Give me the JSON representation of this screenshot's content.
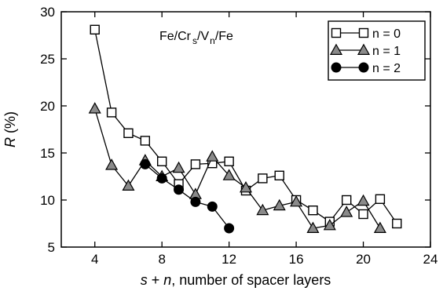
{
  "chart_data": {
    "type": "line",
    "annotation": {
      "parts": [
        {
          "text": "Fe/Cr",
          "style": "normal"
        },
        {
          "text": "s",
          "style": "sub"
        },
        {
          "text": "/V",
          "style": "normal"
        },
        {
          "text": "n",
          "style": "sub"
        },
        {
          "text": "/Fe",
          "style": "normal"
        }
      ]
    },
    "xlabel": {
      "italic1": "s",
      "plain1": " + ",
      "italic2": "n",
      "plain2": ", number of spacer layers"
    },
    "ylabel": {
      "italic": "R",
      "plain": " (%)"
    },
    "xlim": [
      2,
      24
    ],
    "ylim": [
      5,
      30
    ],
    "xticks": [
      4,
      8,
      12,
      16,
      20,
      24
    ],
    "yticks": [
      5,
      10,
      15,
      20,
      25,
      30
    ],
    "grid": false,
    "legend_position": "top-right",
    "series": [
      {
        "name": "n = 0",
        "marker": "square-open",
        "x": [
          4,
          5,
          6,
          7,
          8,
          9,
          10,
          11,
          12,
          13,
          14,
          15,
          16,
          17,
          18,
          19,
          20,
          21,
          22
        ],
        "y": [
          28.1,
          19.3,
          17.1,
          16.3,
          14.1,
          11.7,
          13.8,
          13.9,
          14.1,
          11.0,
          12.3,
          12.6,
          10.0,
          8.9,
          7.7,
          10.0,
          8.5,
          10.1,
          7.5
        ]
      },
      {
        "name": "n = 1",
        "marker": "triangle-gray",
        "x": [
          4,
          5,
          6,
          7,
          8,
          9,
          10,
          11,
          12,
          13,
          14,
          15,
          16,
          17,
          18,
          19,
          20,
          21
        ],
        "y": [
          19.7,
          13.7,
          11.5,
          14.2,
          12.5,
          13.4,
          10.6,
          14.6,
          12.6,
          11.3,
          8.9,
          9.4,
          9.8,
          7.0,
          7.3,
          8.7,
          9.9,
          7.0
        ]
      },
      {
        "name": "n = 2",
        "marker": "circle-filled",
        "x": [
          7,
          8,
          9,
          10,
          11,
          12
        ],
        "y": [
          13.8,
          12.3,
          11.1,
          9.8,
          9.3,
          7.0
        ]
      }
    ]
  }
}
